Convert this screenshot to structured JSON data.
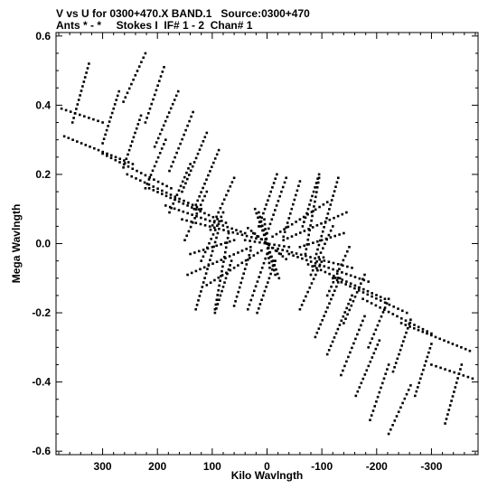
{
  "header": {
    "line1": "V vs U for 0300+470.X BAND.1   Source:0300+470",
    "line2": "Ants * - *     Stokes I  IF# 1 - 2  Chan# 1"
  },
  "chart_data": {
    "type": "scatter",
    "title": "V vs U for 0300+470.X BAND.1   Source:0300+470",
    "subtitle": "Ants * - *     Stokes I  IF# 1 - 2  Chan# 1",
    "xlabel": "Kilo Wavlngth",
    "ylabel": "Mega Wavlngth",
    "xlim": [
      385,
      -385
    ],
    "ylim": [
      -0.61,
      0.61
    ],
    "x_ticks": [
      300,
      200,
      100,
      0,
      -100,
      -200,
      -300
    ],
    "x_tick_labels": [
      "300",
      "200",
      "100",
      "0",
      "-100",
      "-200",
      "-300"
    ],
    "y_ticks": [
      0.6,
      0.4,
      0.2,
      0.0,
      -0.2,
      -0.4,
      -0.6
    ],
    "y_tick_labels": [
      "0.6",
      "0.4",
      "0.2",
      "0.0",
      "-0.2",
      "-0.4",
      "-0.6"
    ],
    "grid": false,
    "marker_color": "#000000",
    "tracks": [
      {
        "from": [
          222,
          0.55
        ],
        "to": [
          262,
          0.41
        ]
      },
      {
        "from": [
          188,
          0.51
        ],
        "to": [
          222,
          0.35
        ]
      },
      {
        "from": [
          162,
          0.44
        ],
        "to": [
          205,
          0.28
        ]
      },
      {
        "from": [
          135,
          0.38
        ],
        "to": [
          178,
          0.21
        ]
      },
      {
        "from": [
          110,
          0.32
        ],
        "to": [
          155,
          0.15
        ]
      },
      {
        "from": [
          88,
          0.27
        ],
        "to": [
          133,
          0.1
        ]
      },
      {
        "from": [
          60,
          0.19
        ],
        "to": [
          103,
          0.04
        ]
      },
      {
        "from": [
          -18,
          0.2
        ],
        "to": [
          15,
          0.05
        ]
      },
      {
        "from": [
          -35,
          0.19
        ],
        "to": [
          0,
          0.03
        ]
      },
      {
        "from": [
          -60,
          0.18
        ],
        "to": [
          -30,
          0.02
        ]
      },
      {
        "from": [
          -95,
          0.2
        ],
        "to": [
          -65,
          0.05
        ]
      },
      {
        "from": [
          325,
          0.52
        ],
        "to": [
          355,
          0.35
        ]
      },
      {
        "from": [
          270,
          0.44
        ],
        "to": [
          300,
          0.29
        ]
      },
      {
        "from": [
          230,
          0.37
        ],
        "to": [
          262,
          0.22
        ]
      },
      {
        "from": [
          185,
          0.3
        ],
        "to": [
          222,
          0.16
        ]
      },
      {
        "from": [
          140,
          0.23
        ],
        "to": [
          178,
          0.09
        ]
      },
      {
        "from": [
          110,
          0.15
        ],
        "to": [
          150,
          0.01
        ]
      },
      {
        "from": [
          80,
          0.09
        ],
        "to": [
          120,
          -0.05
        ]
      },
      {
        "from": [
          -222,
          -0.55
        ],
        "to": [
          -262,
          -0.41
        ]
      },
      {
        "from": [
          -188,
          -0.51
        ],
        "to": [
          -222,
          -0.35
        ]
      },
      {
        "from": [
          -162,
          -0.44
        ],
        "to": [
          -205,
          -0.28
        ]
      },
      {
        "from": [
          -135,
          -0.38
        ],
        "to": [
          -178,
          -0.21
        ]
      },
      {
        "from": [
          -110,
          -0.32
        ],
        "to": [
          -155,
          -0.15
        ]
      },
      {
        "from": [
          -88,
          -0.27
        ],
        "to": [
          -133,
          -0.1
        ]
      },
      {
        "from": [
          -60,
          -0.19
        ],
        "to": [
          -103,
          -0.04
        ]
      },
      {
        "from": [
          18,
          -0.2
        ],
        "to": [
          -15,
          -0.05
        ]
      },
      {
        "from": [
          35,
          -0.19
        ],
        "to": [
          0,
          -0.03
        ]
      },
      {
        "from": [
          60,
          -0.18
        ],
        "to": [
          30,
          -0.02
        ]
      },
      {
        "from": [
          95,
          -0.2
        ],
        "to": [
          65,
          -0.05
        ]
      },
      {
        "from": [
          -325,
          -0.52
        ],
        "to": [
          -355,
          -0.35
        ]
      },
      {
        "from": [
          -270,
          -0.44
        ],
        "to": [
          -300,
          -0.29
        ]
      },
      {
        "from": [
          -230,
          -0.37
        ],
        "to": [
          -262,
          -0.22
        ]
      },
      {
        "from": [
          -185,
          -0.3
        ],
        "to": [
          -222,
          -0.16
        ]
      },
      {
        "from": [
          -140,
          -0.23
        ],
        "to": [
          -178,
          -0.09
        ]
      },
      {
        "from": [
          -110,
          -0.15
        ],
        "to": [
          -150,
          -0.01
        ]
      },
      {
        "from": [
          -80,
          -0.09
        ],
        "to": [
          -120,
          0.05
        ]
      },
      {
        "from": [
          375,
          0.39
        ],
        "to": [
          300,
          0.35
        ]
      },
      {
        "from": [
          370,
          0.31
        ],
        "to": [
          245,
          0.23
        ]
      },
      {
        "from": [
          300,
          0.26
        ],
        "to": [
          175,
          0.16
        ]
      },
      {
        "from": [
          255,
          0.2
        ],
        "to": [
          120,
          0.1
        ]
      },
      {
        "from": [
          215,
          0.16
        ],
        "to": [
          75,
          0.06
        ]
      },
      {
        "from": [
          185,
          0.11
        ],
        "to": [
          40,
          0.03
        ]
      },
      {
        "from": [
          155,
          0.07
        ],
        "to": [
          20,
          0.015
        ]
      },
      {
        "from": [
          -375,
          -0.39
        ],
        "to": [
          -300,
          -0.35
        ]
      },
      {
        "from": [
          -370,
          -0.31
        ],
        "to": [
          -245,
          -0.23
        ]
      },
      {
        "from": [
          -300,
          -0.26
        ],
        "to": [
          -175,
          -0.16
        ]
      },
      {
        "from": [
          -255,
          -0.2
        ],
        "to": [
          -120,
          -0.1
        ]
      },
      {
        "from": [
          -215,
          -0.16
        ],
        "to": [
          -75,
          -0.06
        ]
      },
      {
        "from": [
          -185,
          -0.11
        ],
        "to": [
          -40,
          -0.03
        ]
      },
      {
        "from": [
          -155,
          -0.07
        ],
        "to": [
          -20,
          -0.015
        ]
      },
      {
        "from": [
          140,
          -0.03
        ],
        "to": [
          60,
          0.01
        ]
      },
      {
        "from": [
          145,
          -0.09
        ],
        "to": [
          30,
          -0.01
        ]
      },
      {
        "from": [
          110,
          -0.12
        ],
        "to": [
          10,
          -0.02
        ]
      },
      {
        "from": [
          130,
          -0.19
        ],
        "to": [
          90,
          0.03
        ]
      },
      {
        "from": [
          95,
          -0.19
        ],
        "to": [
          70,
          0.03
        ]
      },
      {
        "from": [
          -140,
          0.03
        ],
        "to": [
          -60,
          -0.01
        ]
      },
      {
        "from": [
          -145,
          0.09
        ],
        "to": [
          -30,
          0.01
        ]
      },
      {
        "from": [
          -110,
          0.12
        ],
        "to": [
          -10,
          0.02
        ]
      },
      {
        "from": [
          -130,
          0.19
        ],
        "to": [
          -90,
          -0.03
        ]
      },
      {
        "from": [
          -95,
          0.19
        ],
        "to": [
          -70,
          -0.03
        ]
      },
      {
        "from": [
          25,
          0.03
        ],
        "to": [
          -25,
          -0.03
        ]
      },
      {
        "from": [
          15,
          0.09
        ],
        "to": [
          -15,
          -0.09
        ]
      },
      {
        "from": [
          40,
          0.01
        ],
        "to": [
          -40,
          -0.01
        ]
      },
      {
        "from": [
          5,
          0.07
        ],
        "to": [
          -5,
          -0.07
        ]
      },
      {
        "from": [
          35,
          0.045
        ],
        "to": [
          -35,
          -0.045
        ]
      },
      {
        "from": [
          22,
          0.1
        ],
        "to": [
          -22,
          -0.1
        ]
      }
    ]
  }
}
